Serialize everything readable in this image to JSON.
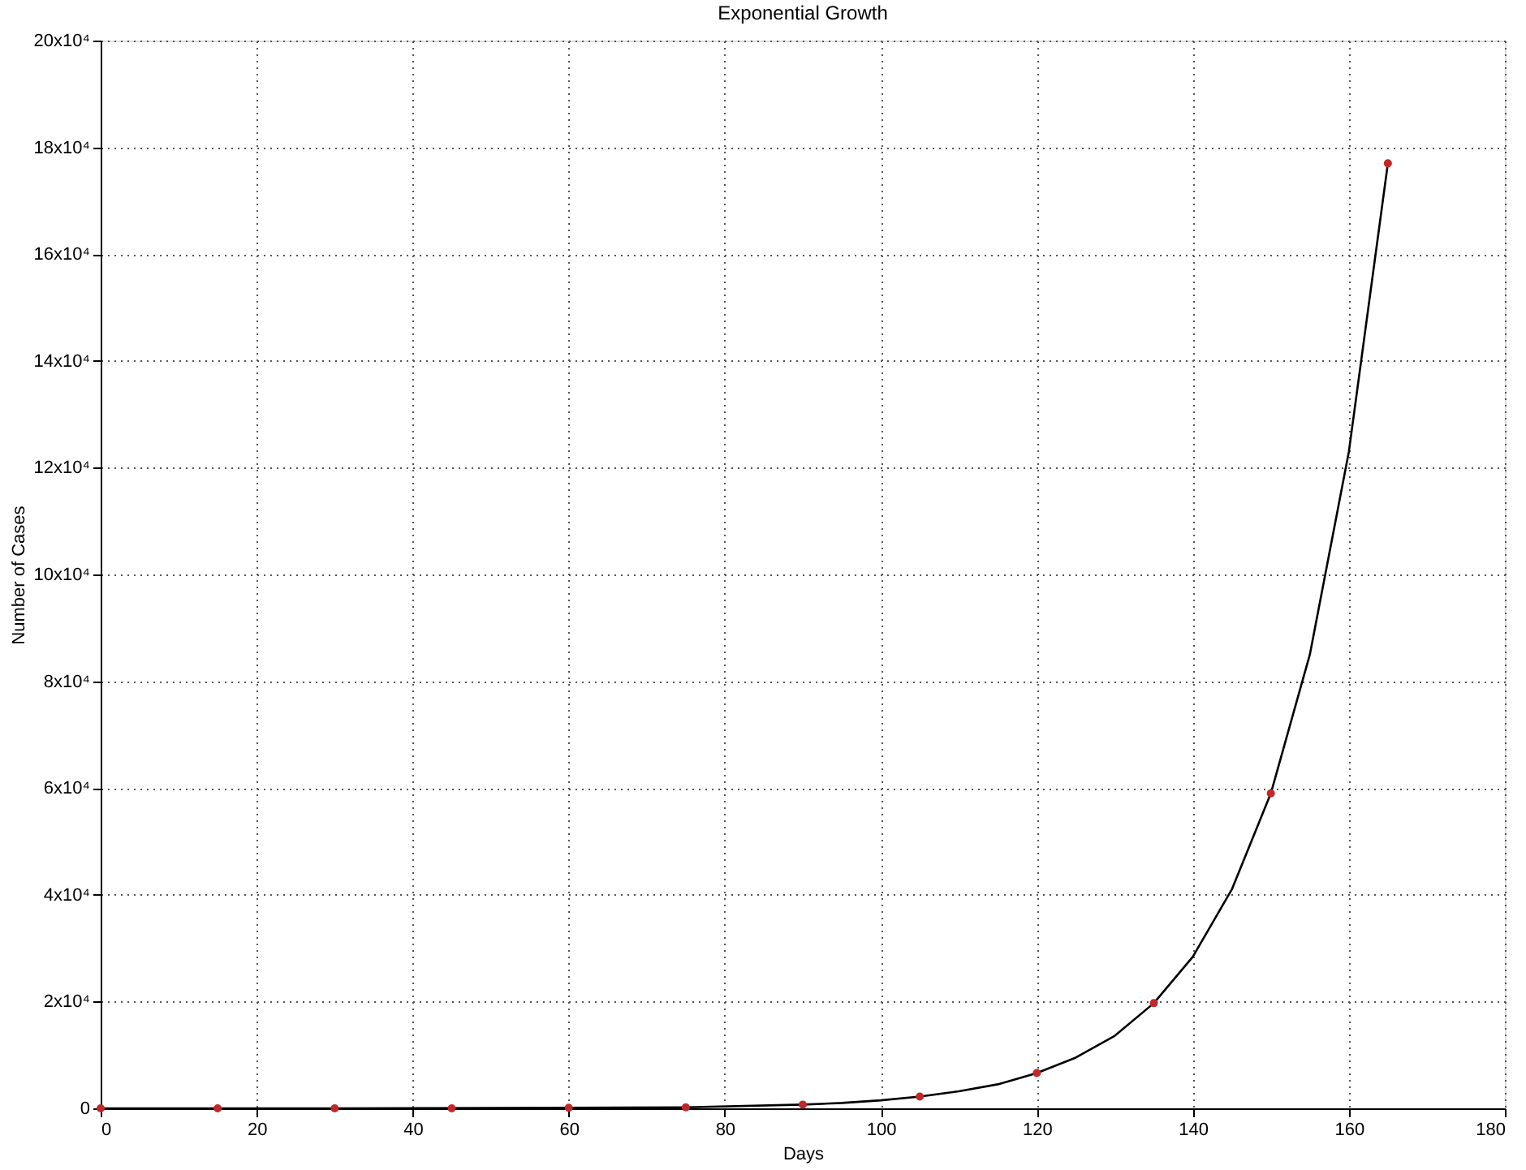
{
  "chart_data": {
    "type": "line",
    "title": "Exponential Growth",
    "xlabel": "Days",
    "ylabel": "Number of Cases",
    "series": [
      {
        "color": "#000000",
        "marker": "none",
        "x": [
          0,
          30,
          60,
          75,
          90,
          95,
          100,
          105,
          110,
          115,
          120,
          125,
          130,
          135,
          140,
          145,
          150,
          155,
          160,
          165
        ],
        "values": [
          0,
          0,
          100,
          200,
          700,
          1000,
          1500,
          2200,
          3200,
          4500,
          6600,
          9500,
          13600,
          19700,
          28400,
          41000,
          59000,
          85000,
          123000,
          177000
        ]
      },
      {
        "type": "scatter",
        "color": "#c0282a",
        "marker": "circle",
        "x": [
          0,
          15,
          30,
          45,
          60,
          75,
          90,
          105,
          120,
          135,
          150,
          165
        ],
        "values": [
          0,
          0,
          0,
          0,
          100,
          200,
          700,
          2200,
          6600,
          19700,
          59000,
          177000
        ]
      }
    ],
    "xlim": [
      0,
      180
    ],
    "xticks": [
      0,
      20,
      40,
      60,
      80,
      100,
      120,
      140,
      160,
      180
    ],
    "ylim": [
      0,
      200000
    ],
    "yticks": [
      0,
      {
        "value": 20000,
        "label": "2x10⁴"
      },
      {
        "value": 40000,
        "label": "4x10⁴"
      },
      {
        "value": 60000,
        "label": "6x10⁴"
      },
      {
        "value": 80000,
        "label": "8x10⁴"
      },
      {
        "value": 100000,
        "label": "10x10⁴"
      },
      {
        "value": 120000,
        "label": "12x10⁴"
      },
      {
        "value": 140000,
        "label": "14x10⁴"
      },
      {
        "value": 160000,
        "label": "16x10⁴"
      },
      {
        "value": 180000,
        "label": "18x10⁴"
      },
      {
        "value": 200000,
        "label": "20x10⁴"
      }
    ],
    "grid": true
  }
}
